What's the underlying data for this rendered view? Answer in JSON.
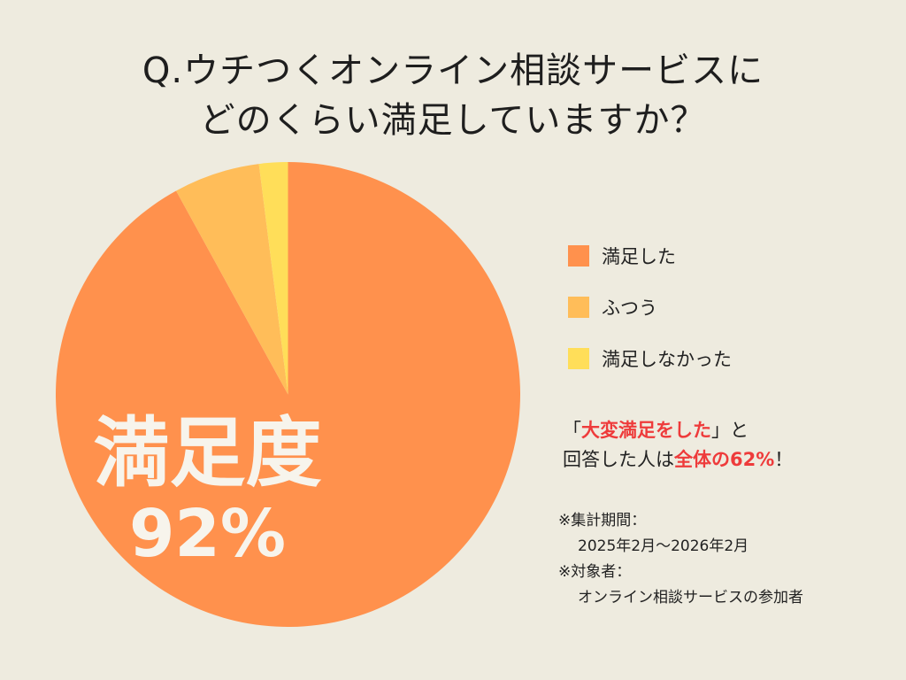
{
  "title": {
    "line1": "Q.ウチつくオンライン相談サービスに",
    "line2": "どのくらい満足していますか？"
  },
  "chart_data": {
    "type": "pie",
    "categories": [
      "満足した",
      "ふつう",
      "満足しなかった"
    ],
    "values": [
      92,
      6,
      2
    ],
    "colors": [
      "#ff914d",
      "#ffbd59",
      "#ffde59"
    ],
    "center_label": {
      "line1": "満足度",
      "line2": "92%"
    }
  },
  "note": {
    "open_bracket": "「",
    "highlight1": "大変満足をした",
    "close_bracket": "」と",
    "line2_prefix": "回答した人は",
    "highlight2": "全体の62%",
    "line2_suffix": "！"
  },
  "period": {
    "label1": "※集計期間：",
    "value1": "2025年2月〜2026年2月",
    "label2": "※対象者：",
    "value2": "オンライン相談サービスの参加者"
  }
}
